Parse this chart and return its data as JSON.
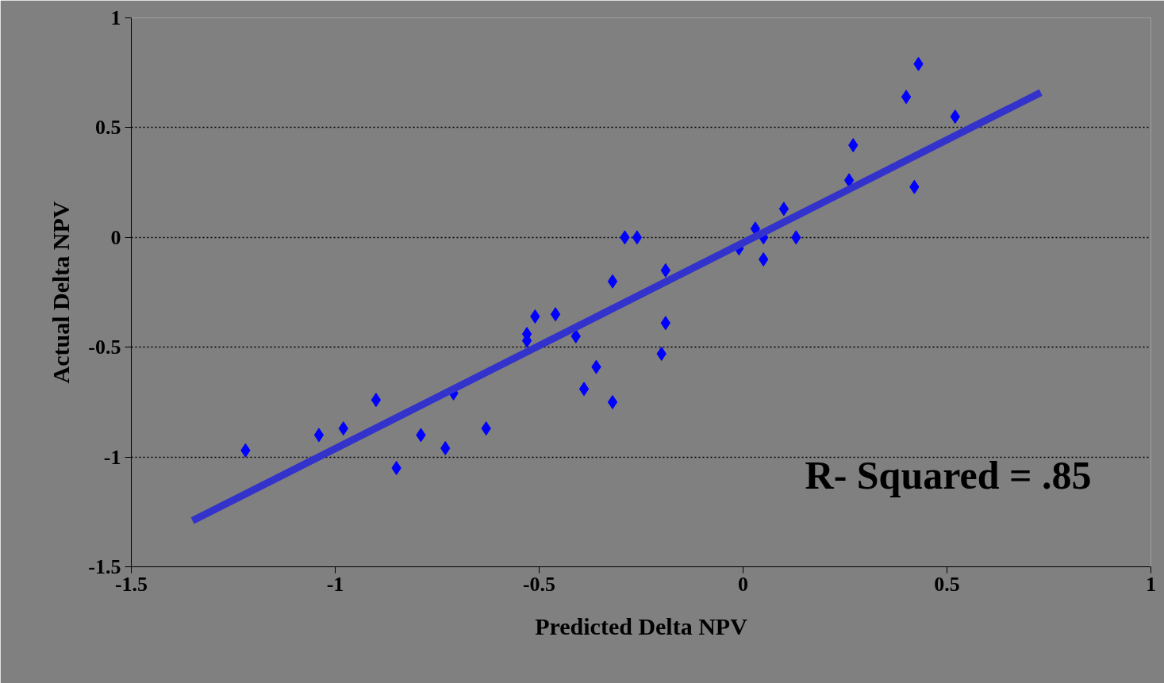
{
  "chart_data": {
    "type": "scatter",
    "xlabel": "Predicted Delta NPV",
    "ylabel": "Actual Delta NPV",
    "xlim": [
      -1.5,
      1
    ],
    "ylim": [
      -1.5,
      1
    ],
    "xticks": [
      -1.5,
      -1,
      -0.5,
      0,
      0.5,
      1
    ],
    "yticks": [
      -1.5,
      -1,
      -0.5,
      0,
      0.5,
      1
    ],
    "grid": "y",
    "marker": "diamond",
    "annotations": [
      "R- Squared = .85"
    ],
    "series": [
      {
        "type": "scatter",
        "color": "#0000ff",
        "x": [
          -1.22,
          -1.04,
          -0.98,
          -0.9,
          -0.85,
          -0.79,
          -0.73,
          -0.71,
          -0.63,
          -0.53,
          -0.53,
          -0.51,
          -0.46,
          -0.41,
          -0.39,
          -0.36,
          -0.32,
          -0.32,
          -0.29,
          -0.26,
          -0.2,
          -0.19,
          -0.19,
          -0.01,
          0.03,
          0.05,
          0.05,
          0.1,
          0.13,
          0.26,
          0.27,
          0.4,
          0.42,
          0.43,
          0.52
        ],
        "values": [
          -0.97,
          -0.9,
          -0.87,
          -0.74,
          -1.05,
          -0.9,
          -0.96,
          -0.71,
          -0.87,
          -0.44,
          -0.47,
          -0.36,
          -0.35,
          -0.45,
          -0.69,
          -0.59,
          -0.2,
          -0.75,
          0,
          0,
          -0.53,
          -0.39,
          -0.15,
          -0.05,
          0.04,
          -0.1,
          0,
          0.13,
          0,
          0.26,
          0.42,
          0.64,
          0.23,
          0.79,
          0.55
        ]
      },
      {
        "type": "line",
        "color": "#3333cc",
        "line_style": "solid",
        "marker": "none",
        "x": [
          -1.35,
          0.73
        ],
        "values": [
          -1.29,
          0.66
        ]
      }
    ]
  }
}
